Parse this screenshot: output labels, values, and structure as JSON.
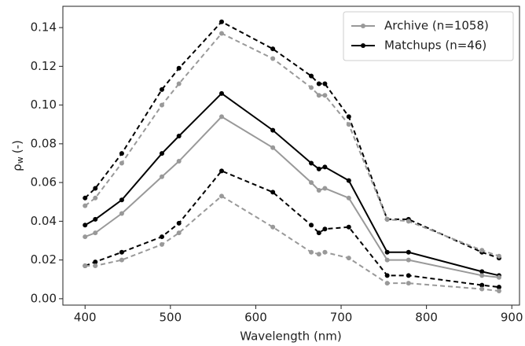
{
  "chart_data": {
    "type": "line",
    "x_label": "Wavelength (nm)",
    "y_label": {
      "symbol": "ρ",
      "subscript": "w",
      "unit": "(-)"
    },
    "x": [
      400,
      412,
      443,
      490,
      510,
      560,
      620,
      665,
      674,
      681,
      709,
      754,
      779,
      865,
      885
    ],
    "xlim": [
      374,
      909
    ],
    "xticks": [
      400,
      500,
      600,
      700,
      800,
      900
    ],
    "ylim": [
      -0.0033,
      0.151
    ],
    "yticks": [
      {
        "value": 0,
        "label": "0.00"
      },
      {
        "value": 0.02,
        "label": "0.02"
      },
      {
        "value": 0.04,
        "label": "0.04"
      },
      {
        "value": 0.06,
        "label": "0.06"
      },
      {
        "value": 0.08,
        "label": "0.08"
      },
      {
        "value": 0.1,
        "label": "0.10"
      },
      {
        "value": 0.12,
        "label": "0.12"
      },
      {
        "value": 0.14,
        "label": "0.14"
      }
    ],
    "legend": "upper right",
    "series": [
      {
        "name": "Archive (n=1058)",
        "color": "#999999",
        "dash": false,
        "values": [
          0.032,
          0.034,
          0.044,
          0.063,
          0.071,
          0.094,
          0.078,
          0.06,
          0.056,
          0.057,
          0.052,
          0.02,
          0.02,
          0.012,
          0.011
        ]
      },
      {
        "name": "Matchups (n=46)",
        "color": "#000000",
        "dash": false,
        "values": [
          0.038,
          0.041,
          0.051,
          0.075,
          0.084,
          0.106,
          0.087,
          0.07,
          0.067,
          0.068,
          0.061,
          0.024,
          0.024,
          0.014,
          0.012
        ]
      },
      {
        "color": "#999999",
        "dash": true,
        "values": [
          0.048,
          0.052,
          0.07,
          0.1,
          0.111,
          0.137,
          0.124,
          0.109,
          0.105,
          0.105,
          0.09,
          0.041,
          0.04,
          0.025,
          0.022
        ]
      },
      {
        "color": "#000000",
        "dash": true,
        "values": [
          0.052,
          0.057,
          0.075,
          0.108,
          0.119,
          0.143,
          0.129,
          0.115,
          0.111,
          0.111,
          0.094,
          0.041,
          0.041,
          0.024,
          0.021
        ]
      },
      {
        "color": "#999999",
        "dash": true,
        "values": [
          0.017,
          0.017,
          0.02,
          0.028,
          0.034,
          0.053,
          0.037,
          0.024,
          0.023,
          0.024,
          0.021,
          0.008,
          0.008,
          0.005,
          0.004
        ]
      },
      {
        "color": "#000000",
        "dash": true,
        "values": [
          0.017,
          0.019,
          0.024,
          0.032,
          0.039,
          0.066,
          0.055,
          0.038,
          0.034,
          0.036,
          0.037,
          0.012,
          0.012,
          0.007,
          0.006
        ]
      }
    ]
  }
}
